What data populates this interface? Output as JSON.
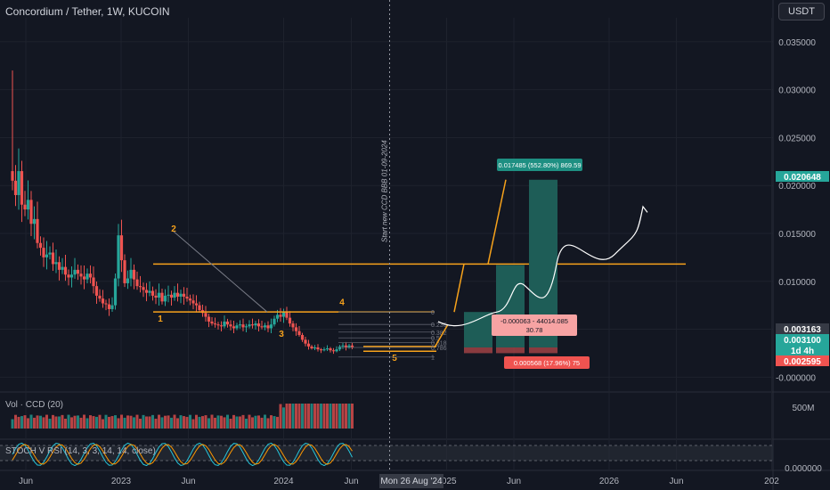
{
  "header": {
    "title": "Concordium / Tether, 1W, KUCOIN",
    "currency_button": "USDT"
  },
  "colors": {
    "background": "#131722",
    "up_candle": "#26a69a",
    "down_candle": "#ef5350",
    "orange": "#f7a21b",
    "target_box": "#1e5d57",
    "stop_box": "#b3484a",
    "grid": "#1e222d"
  },
  "chart_data": [
    {
      "type": "candlestick",
      "title": "Concordium / Tether, 1W, KUCOIN",
      "y_axis_ticks": [
        "0.035000",
        "0.030000",
        "0.025000",
        "0.020000",
        "0.015000",
        "0.010000",
        "0.005000",
        "-0.000000"
      ],
      "ylim": [
        -0.0009,
        0.0375
      ],
      "x_axis_ticks": [
        "Jun",
        "2023",
        "Jun",
        "2024",
        "Jun",
        "2025",
        "Jun",
        "2026",
        "Jun",
        "202"
      ],
      "x_range": [
        "2022-04-04",
        "2027-01-04"
      ],
      "price_tags": [
        {
          "value": "0.020648",
          "color": "#26a69a"
        },
        {
          "value": "0.003163",
          "color": "#363a45"
        },
        {
          "value": "0.003100",
          "color": "#26a69a"
        },
        {
          "value": "1d 4h",
          "color": "#26a69a"
        },
        {
          "value": "0.002595",
          "color": "#ef5350"
        }
      ],
      "candles_close": [
        0.0205,
        0.019,
        0.0215,
        0.018,
        0.0175,
        0.0185,
        0.016,
        0.0165,
        0.014,
        0.0135,
        0.0125,
        0.0128,
        0.013,
        0.0118,
        0.012,
        0.0112,
        0.0115,
        0.0107,
        0.0104,
        0.0107,
        0.0112,
        0.0108,
        0.0105,
        0.0102,
        0.0108,
        0.0104,
        0.0095,
        0.0085,
        0.0082,
        0.0077,
        0.0076,
        0.0071,
        0.0075,
        0.0103,
        0.0148,
        0.0122,
        0.0098,
        0.0103,
        0.0112,
        0.0102,
        0.0095,
        0.0094,
        0.0091,
        0.0088,
        0.009,
        0.0085,
        0.0083,
        0.0088,
        0.0079,
        0.0085,
        0.0086,
        0.0083,
        0.0088,
        0.0084,
        0.0087,
        0.0084,
        0.0082,
        0.008,
        0.0077,
        0.0075,
        0.007,
        0.0067,
        0.0063,
        0.0058,
        0.0056,
        0.0055,
        0.0054,
        0.0053,
        0.0058,
        0.0055,
        0.0053,
        0.0051,
        0.0054,
        0.0055,
        0.0052,
        0.0053,
        0.0055,
        0.0054,
        0.0056,
        0.0053,
        0.0052,
        0.0054,
        0.0051,
        0.0055,
        0.0061,
        0.0065,
        0.0063,
        0.0068,
        0.0062,
        0.0056,
        0.0052,
        0.0048,
        0.0044,
        0.0039,
        0.0035,
        0.0032,
        0.003,
        0.0031,
        0.0029,
        0.0028,
        0.0029,
        0.003,
        0.0028,
        0.0027,
        0.0029,
        0.0032,
        0.0033,
        0.0031,
        0.0033,
        0.0031
      ],
      "annotations": {
        "wave_labels": [
          "1",
          "2",
          "3",
          "4",
          "5"
        ],
        "vertical_text": "Start new CCD BBB 01-09-2024",
        "fib_labels": [
          "0",
          "0.236",
          "0.382",
          "0.5",
          "0.618",
          "0.786",
          "1"
        ],
        "target_label": "0.017485 (552.80%) 869.59",
        "info_label_line1": "-0.000063 - 44014.085",
        "info_label_line2": "30.78",
        "stop_label": "0.000568 (17.96%) 75",
        "hline_levels": [
          0.0118,
          0.0068,
          0.0032,
          0.0027
        ],
        "target_top": 0.0206,
        "target_top_small": 0.0117,
        "entry_level": 0.0031,
        "stop_level": 0.0025
      }
    },
    {
      "type": "bar",
      "title": "Vol · CCD (20)",
      "y_axis_ticks": [
        "500M"
      ]
    },
    {
      "type": "line",
      "title": "STOCH V RSI (14, 3, 3, 14, 14, close)",
      "y_axis_ticks": [
        "0.000000"
      ]
    }
  ],
  "crosshair_time_label": "Mon 26 Aug '24"
}
